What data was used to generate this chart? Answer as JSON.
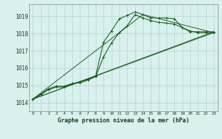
{
  "title": "Graphe pression niveau de la mer (hPa)",
  "background_color": "#d8f0ee",
  "grid_color": "#b8d8d4",
  "line_color": "#1a5c1a",
  "xlim": [
    -0.5,
    23.5
  ],
  "ylim": [
    1013.5,
    1019.7
  ],
  "yticks": [
    1014,
    1015,
    1016,
    1017,
    1018,
    1019
  ],
  "xticks": [
    0,
    1,
    2,
    3,
    4,
    5,
    6,
    7,
    8,
    9,
    10,
    11,
    12,
    13,
    14,
    15,
    16,
    17,
    18,
    19,
    20,
    21,
    22,
    23
  ],
  "series1_x": [
    0,
    1,
    2,
    3,
    4,
    5,
    6,
    7,
    8,
    9,
    10,
    11,
    12,
    13,
    14,
    15,
    16,
    17,
    18,
    19,
    20,
    21,
    22,
    23
  ],
  "series1_y": [
    1014.2,
    1014.5,
    1014.8,
    1014.95,
    1014.95,
    1015.1,
    1015.2,
    1015.35,
    1015.55,
    1017.5,
    1018.15,
    1018.85,
    1019.05,
    1019.25,
    1019.1,
    1018.9,
    1018.9,
    1018.9,
    1018.85,
    1018.35,
    1018.1,
    1018.1,
    1018.1,
    1018.1
  ],
  "series2_x": [
    0,
    1,
    2,
    3,
    4,
    5,
    6,
    7,
    8,
    9,
    10,
    11,
    12,
    13,
    14,
    15,
    16,
    17,
    18,
    19,
    20,
    21,
    22,
    23
  ],
  "series2_y": [
    1014.2,
    1014.45,
    1014.75,
    1014.9,
    1014.9,
    1015.1,
    1015.15,
    1015.3,
    1015.5,
    1016.65,
    1017.45,
    1018.05,
    1018.45,
    1019.1,
    1018.9,
    1018.75,
    1018.65,
    1018.6,
    1018.55,
    1018.35,
    1018.15,
    1018.05,
    1018.05,
    1018.05
  ],
  "line1_x": [
    0,
    23
  ],
  "line1_y": [
    1014.2,
    1018.1
  ],
  "line2_x": [
    0,
    23
  ],
  "line2_y": [
    1014.2,
    1018.05
  ],
  "line3_x": [
    0,
    14,
    23
  ],
  "line3_y": [
    1014.2,
    1019.1,
    1018.05
  ]
}
